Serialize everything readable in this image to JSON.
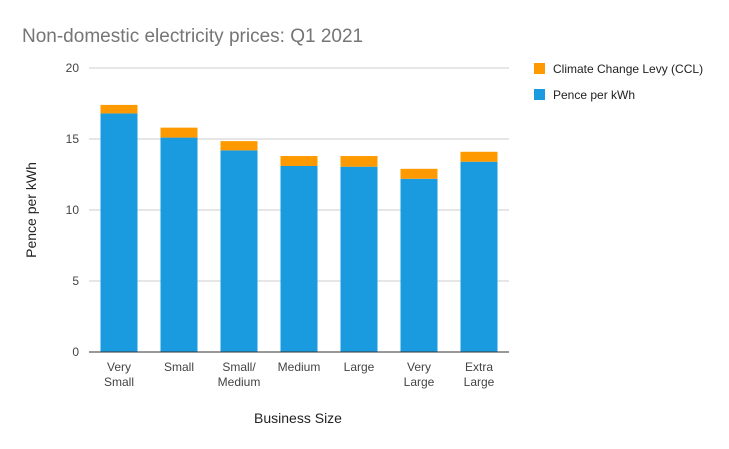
{
  "chart_data": {
    "type": "bar",
    "stacked": true,
    "title": "Non-domestic electricity prices: Q1 2021",
    "xlabel": "Business Size",
    "ylabel": "Pence per kWh",
    "ylim": [
      0,
      20
    ],
    "yticks": [
      0,
      5,
      10,
      15,
      20
    ],
    "grid": true,
    "legend_position": "right",
    "categories": [
      [
        "Very",
        "Small"
      ],
      [
        "Small"
      ],
      [
        "Small/",
        "Medium"
      ],
      [
        "Medium"
      ],
      [
        "Large"
      ],
      [
        "Very",
        "Large"
      ],
      [
        "Extra",
        "Large"
      ]
    ],
    "series": [
      {
        "name": "Pence per kWh",
        "color": "#1a9be0",
        "values": [
          16.8,
          15.1,
          14.2,
          13.1,
          13.05,
          12.2,
          13.4
        ]
      },
      {
        "name": "Climate Change Levy (CCL)",
        "color": "#ff9900",
        "values": [
          0.6,
          0.7,
          0.65,
          0.7,
          0.75,
          0.7,
          0.7
        ]
      }
    ],
    "legend_order": [
      1,
      0
    ]
  }
}
